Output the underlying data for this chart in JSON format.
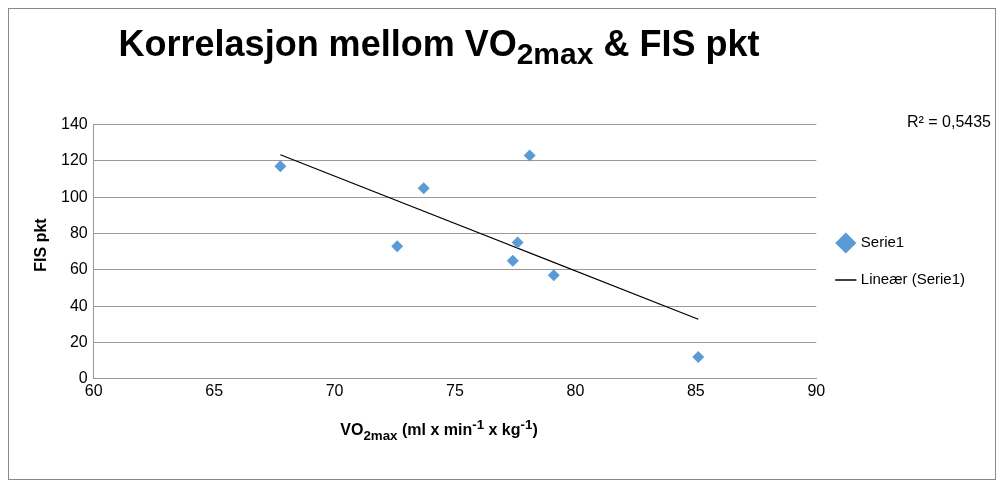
{
  "chart_data": {
    "type": "scatter",
    "title": "Korrelasjon mellom VO$_{2max}$ & FIS pkt",
    "xlabel": "VO$_{2max}$ (ml x min$^{-1}$ x kg$^{-1}$)",
    "ylabel": "FIS pkt",
    "annotations": [
      "R² = 0,5435"
    ],
    "series": [
      {
        "name": "Serie1",
        "type": "scatter",
        "color": "#5b9bd5",
        "marker": "diamond",
        "x": [
          67.75,
          72.6,
          73.7,
          78.1,
          77.6,
          77.4,
          79.1,
          85.1
        ],
        "values": [
          117,
          73,
          105,
          123,
          75,
          65,
          57,
          12
        ]
      },
      {
        "name": "Lineær (Serie1)",
        "type": "line",
        "color": "#000000",
        "marker": "none",
        "x": [
          67.75,
          85.1
        ],
        "values": [
          123.4,
          32.8
        ]
      }
    ],
    "xlim": [
      60,
      90
    ],
    "xticks": [
      60,
      65,
      70,
      75,
      80,
      85,
      90
    ],
    "ylim": [
      0,
      140
    ],
    "yticks": [
      0,
      20,
      40,
      60,
      80,
      100,
      120,
      140
    ],
    "grid": "y",
    "legend": "right"
  }
}
